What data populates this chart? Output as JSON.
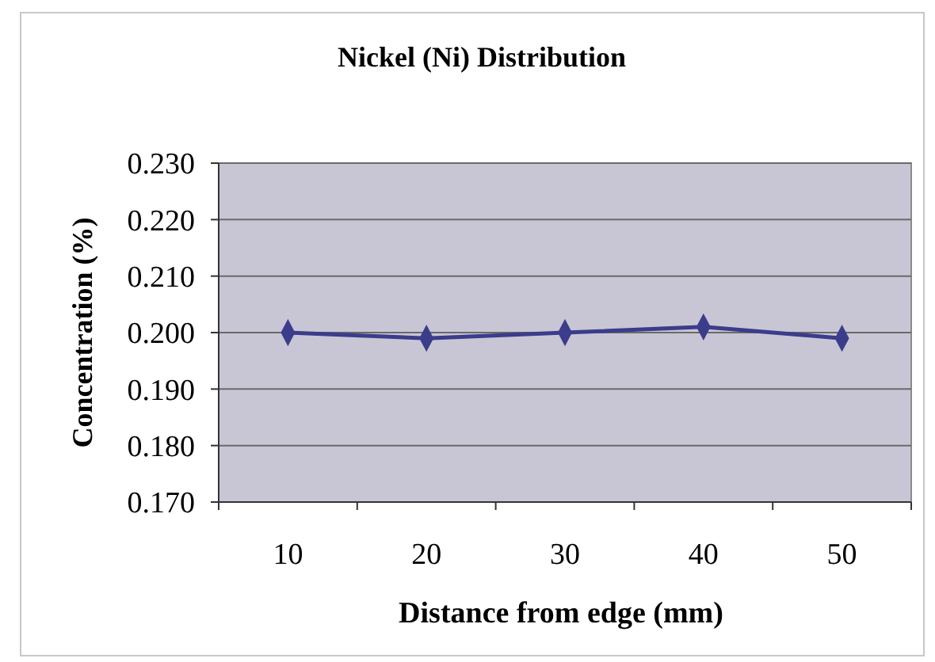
{
  "chart_data": {
    "type": "line",
    "title": "Nickel (Ni) Distribution",
    "xlabel": "Distance from edge (mm)",
    "ylabel": "Concentration (%)",
    "categories": [
      "10",
      "20",
      "30",
      "40",
      "50"
    ],
    "series": [
      {
        "color": "#3c3c8c",
        "values": [
          0.2,
          0.199,
          0.2,
          0.201,
          0.199
        ]
      }
    ],
    "ylim": [
      0.17,
      0.23
    ],
    "yticks": [
      {
        "value": 0.17,
        "label": "0.170"
      },
      {
        "value": 0.18,
        "label": "0.180"
      },
      {
        "value": 0.19,
        "label": "0.190"
      },
      {
        "value": 0.2,
        "label": "0.200"
      },
      {
        "value": 0.21,
        "label": "0.210"
      },
      {
        "value": 0.22,
        "label": "0.220"
      },
      {
        "value": 0.23,
        "label": "0.230"
      }
    ],
    "grid": "y",
    "marker": "diamond"
  }
}
